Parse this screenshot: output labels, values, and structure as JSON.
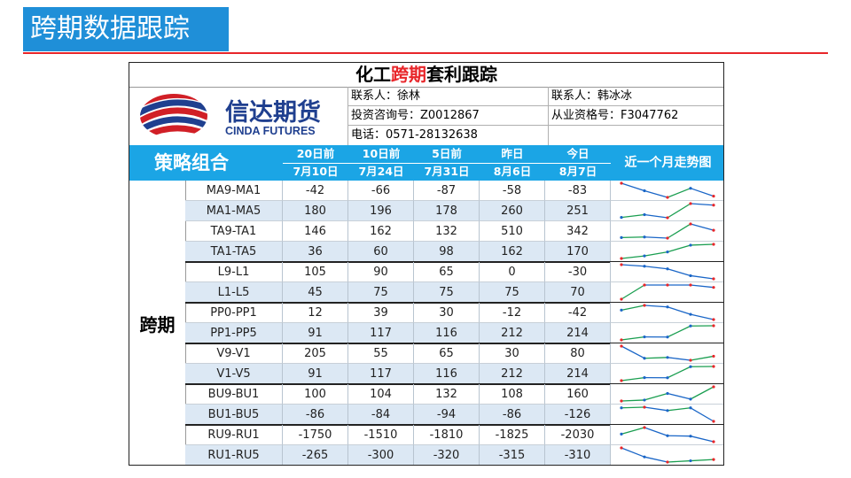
{
  "slide_title": "跨期数据跟踪",
  "sheet": {
    "title_prefix": "化工",
    "title_red": "跨期",
    "title_suffix": "套利跟踪",
    "logo_cn": "信达期货",
    "logo_en": "CINDA FUTURES",
    "contact1": "联系人：徐林",
    "contact2": "联系人：韩冰冰",
    "license1": "投资咨询号：Z0012867",
    "license2": "从业资格号：F3047762",
    "phone": "电话：0571-28132638"
  },
  "header": {
    "strategy": "策略组合",
    "cols": [
      {
        "l1": "20日前",
        "l2": "7月10日"
      },
      {
        "l1": "10日前",
        "l2": "7月24日"
      },
      {
        "l1": "5日前",
        "l2": "7月31日"
      },
      {
        "l1": "昨日",
        "l2": "8月6日"
      },
      {
        "l1": "今日",
        "l2": "8月7日"
      }
    ],
    "trend": "近一个月走势图"
  },
  "group": "跨期",
  "rows": [
    {
      "name": "MA9-MA1",
      "values": [
        "-42",
        "-66",
        "-87",
        "-58",
        "-83"
      ]
    },
    {
      "name": "MA1-MA5",
      "values": [
        "180",
        "196",
        "178",
        "260",
        "251"
      ]
    },
    {
      "name": "TA9-TA1",
      "values": [
        "146",
        "162",
        "132",
        "510",
        "342"
      ]
    },
    {
      "name": "TA1-TA5",
      "values": [
        "36",
        "60",
        "98",
        "162",
        "170"
      ]
    },
    {
      "name": "L9-L1",
      "values": [
        "105",
        "90",
        "65",
        "0",
        "-30"
      ]
    },
    {
      "name": "L1-L5",
      "values": [
        "45",
        "75",
        "75",
        "75",
        "70"
      ]
    },
    {
      "name": "PP0-PP1",
      "values": [
        "12",
        "39",
        "30",
        "-12",
        "-42"
      ]
    },
    {
      "name": "PP1-PP5",
      "values": [
        "91",
        "117",
        "116",
        "212",
        "214"
      ]
    },
    {
      "name": "V9-V1",
      "values": [
        "205",
        "55",
        "65",
        "30",
        "80"
      ]
    },
    {
      "name": "V1-V5",
      "values": [
        "91",
        "117",
        "116",
        "212",
        "214"
      ]
    },
    {
      "name": "BU9-BU1",
      "values": [
        "100",
        "104",
        "132",
        "108",
        "160"
      ]
    },
    {
      "name": "BU1-BU5",
      "values": [
        "-86",
        "-84",
        "-94",
        "-86",
        "-126"
      ]
    },
    {
      "name": "RU9-RU1",
      "values": [
        "-1750",
        "-1510",
        "-1810",
        "-1825",
        "-2030"
      ]
    },
    {
      "name": "RU1-RU5",
      "values": [
        "-265",
        "-300",
        "-320",
        "-315",
        "-310"
      ]
    }
  ],
  "colors": {
    "title_bg": "#1f8fd8",
    "header_bg": "#1ba5e5",
    "accent_red": "#e8262a",
    "spark_blue": "#1a66c7",
    "spark_green": "#1a9e50",
    "spark_marker_red": "#e8262a"
  }
}
